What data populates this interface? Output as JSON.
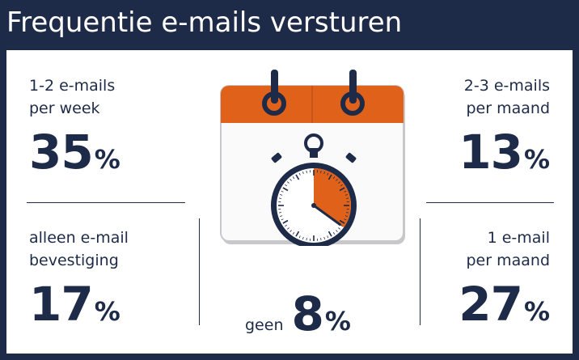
{
  "title": "Frequentie e-mails versturen",
  "stats": [
    {
      "label_line1": "1-2 e-mails",
      "label_line2": "per week",
      "value": "35",
      "unit": "%"
    },
    {
      "label_line1": "2-3 e-mails",
      "label_line2": "per maand",
      "value": "13",
      "unit": "%"
    },
    {
      "label_line1": "alleen e-mail",
      "label_line2": "bevestiging",
      "value": "17",
      "unit": "%"
    },
    {
      "label_line1": "1 e-mail",
      "label_line2": "per maand",
      "value": "27",
      "unit": "%"
    },
    {
      "label_line1": "geen",
      "value": "8",
      "unit": "%"
    }
  ],
  "colors": {
    "background": "#1d2b48",
    "card": "#ffffff",
    "accent": "#e0621a",
    "text": "#1d2b48"
  },
  "icons": {
    "calendar": "calendar-icon",
    "stopwatch": "stopwatch-icon"
  },
  "chart_data": {
    "type": "table",
    "title": "Frequentie e-mails versturen",
    "categories": [
      "1-2 e-mails per week",
      "2-3 e-mails per maand",
      "alleen e-mail bevestiging",
      "1 e-mail per maand",
      "geen"
    ],
    "values": [
      35,
      13,
      17,
      27,
      8
    ],
    "unit": "%",
    "stopwatch_fraction": 0.35
  }
}
